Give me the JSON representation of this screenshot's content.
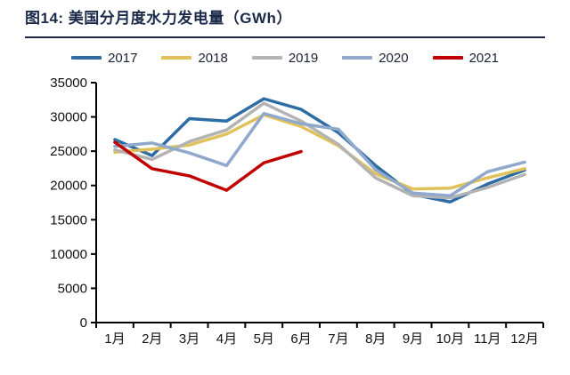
{
  "title": "图14:  美国分月度水力发电量（GWh）",
  "colors": {
    "title": "#1b2a4a",
    "separator": "#1b2a4a",
    "axis": "#000000",
    "tick_label": "#111111",
    "background": "#ffffff"
  },
  "chart_data": {
    "type": "line",
    "title": "美国分月度水力发电量（GWh）",
    "figure_label": "图14",
    "categories": [
      "1月",
      "2月",
      "3月",
      "4月",
      "5月",
      "6月",
      "7月",
      "8月",
      "9月",
      "10月",
      "11月",
      "12月"
    ],
    "series": [
      {
        "name": "2017",
        "color": "#2e6da4",
        "values": [
          26700,
          24350,
          29750,
          29400,
          32650,
          31100,
          27700,
          22900,
          18700,
          17600,
          20200,
          22250
        ]
      },
      {
        "name": "2018",
        "color": "#dfc25a",
        "values": [
          24850,
          25300,
          25900,
          27500,
          30300,
          28600,
          25800,
          21700,
          19500,
          19600,
          21100,
          22450
        ]
      },
      {
        "name": "2019",
        "color": "#b3b3b3",
        "values": [
          25200,
          23800,
          26400,
          28100,
          32000,
          29400,
          26000,
          21100,
          18500,
          18200,
          19700,
          21600
        ]
      },
      {
        "name": "2020",
        "color": "#8fa8cc",
        "values": [
          25700,
          26200,
          24750,
          22900,
          30500,
          29000,
          28200,
          22300,
          18900,
          18500,
          22000,
          23400
        ]
      },
      {
        "name": "2021",
        "color": "#c00000",
        "values": [
          26300,
          22450,
          21400,
          19300,
          23300,
          24950
        ]
      }
    ],
    "xlabel": "",
    "ylabel": "",
    "ylim": [
      0,
      35000
    ],
    "ytick_step": 5000,
    "yticks": [
      0,
      5000,
      10000,
      15000,
      20000,
      25000,
      30000,
      35000
    ],
    "legend_position": "top",
    "grid": false,
    "line_width": 3.5
  }
}
